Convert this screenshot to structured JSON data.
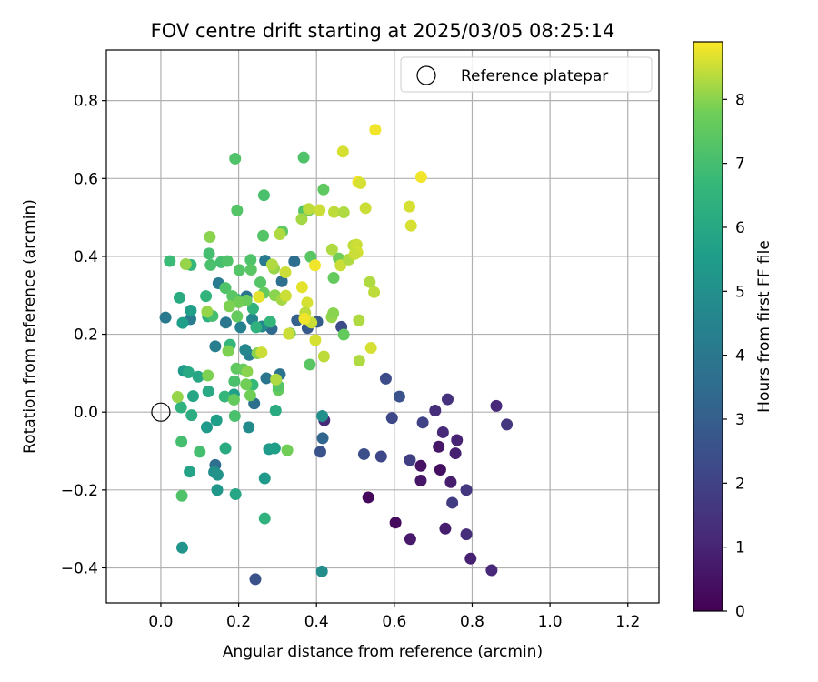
{
  "chart_data": {
    "type": "scatter",
    "title": "FOV centre drift starting at 2025/03/05 08:25:14",
    "xlabel": "Angular distance from reference (arcmin)",
    "ylabel": "Rotation from reference (arcmin)",
    "xlim": [
      -0.14,
      1.28
    ],
    "ylim": [
      -0.49,
      0.93
    ],
    "xticks": [
      "0.0",
      "0.2",
      "0.4",
      "0.6",
      "0.8",
      "1.0",
      "1.2"
    ],
    "yticks": [
      "−0.4",
      "−0.2",
      "0.0",
      "0.2",
      "0.4",
      "0.6",
      "0.8"
    ],
    "grid": true,
    "legend": {
      "position": "top-right",
      "entries": [
        "Reference platepar"
      ]
    },
    "reference_point": {
      "x": 0.0,
      "y": 0.0,
      "label": "Reference platepar"
    },
    "colorbar": {
      "label": "Hours from first FF file",
      "colormap": "viridis",
      "range": [
        0,
        8.9
      ],
      "ticks": [
        "0",
        "1",
        "2",
        "3",
        "4",
        "5",
        "6",
        "7",
        "8"
      ]
    },
    "points": [
      {
        "x": 0.533,
        "y": -0.219,
        "c": 0.2
      },
      {
        "x": 0.603,
        "y": -0.284,
        "c": 0.3
      },
      {
        "x": 0.668,
        "y": -0.138,
        "c": 0.5
      },
      {
        "x": 0.668,
        "y": -0.176,
        "c": 0.6
      },
      {
        "x": 0.641,
        "y": -0.326,
        "c": 0.7
      },
      {
        "x": 0.718,
        "y": -0.148,
        "c": 0.4
      },
      {
        "x": 0.714,
        "y": -0.089,
        "c": 0.6
      },
      {
        "x": 0.745,
        "y": -0.18,
        "c": 0.8
      },
      {
        "x": 0.731,
        "y": -0.299,
        "c": 0.8
      },
      {
        "x": 0.796,
        "y": -0.376,
        "c": 0.9
      },
      {
        "x": 0.85,
        "y": -0.406,
        "c": 1.1
      },
      {
        "x": 0.757,
        "y": -0.106,
        "c": 0.9
      },
      {
        "x": 0.761,
        "y": -0.072,
        "c": 1.0
      },
      {
        "x": 0.725,
        "y": -0.052,
        "c": 1.2
      },
      {
        "x": 0.705,
        "y": 0.004,
        "c": 1.3
      },
      {
        "x": 0.737,
        "y": 0.033,
        "c": 1.4
      },
      {
        "x": 0.785,
        "y": -0.314,
        "c": 1.3
      },
      {
        "x": 0.862,
        "y": 0.016,
        "c": 1.1
      },
      {
        "x": 0.889,
        "y": -0.032,
        "c": 1.6
      },
      {
        "x": 0.785,
        "y": -0.2,
        "c": 1.6
      },
      {
        "x": 0.749,
        "y": -0.233,
        "c": 1.8
      },
      {
        "x": 0.42,
        "y": -0.021,
        "c": 1.2
      },
      {
        "x": 0.64,
        "y": -0.123,
        "c": 1.9
      },
      {
        "x": 0.673,
        "y": -0.027,
        "c": 2.0
      },
      {
        "x": 0.594,
        "y": -0.015,
        "c": 2.2
      },
      {
        "x": 0.566,
        "y": -0.114,
        "c": 2.2
      },
      {
        "x": 0.578,
        "y": 0.086,
        "c": 2.3
      },
      {
        "x": 0.613,
        "y": 0.04,
        "c": 2.6
      },
      {
        "x": 0.522,
        "y": -0.108,
        "c": 2.4
      },
      {
        "x": 0.464,
        "y": 0.219,
        "c": 2.3
      },
      {
        "x": 0.243,
        "y": -0.429,
        "c": 2.5
      },
      {
        "x": 0.41,
        "y": -0.102,
        "c": 2.6
      },
      {
        "x": 0.377,
        "y": 0.216,
        "c": 2.8
      },
      {
        "x": 0.402,
        "y": 0.232,
        "c": 2.9
      },
      {
        "x": 0.35,
        "y": 0.236,
        "c": 3.1
      },
      {
        "x": 0.416,
        "y": -0.067,
        "c": 3.3
      },
      {
        "x": 0.285,
        "y": 0.214,
        "c": 3.4
      },
      {
        "x": 0.343,
        "y": 0.387,
        "c": 3.6
      },
      {
        "x": 0.311,
        "y": 0.336,
        "c": 3.6
      },
      {
        "x": 0.24,
        "y": 0.022,
        "c": 3.7
      },
      {
        "x": 0.306,
        "y": 0.097,
        "c": 3.8
      },
      {
        "x": 0.271,
        "y": 0.087,
        "c": 3.9
      },
      {
        "x": 0.14,
        "y": -0.136,
        "c": 3.6
      },
      {
        "x": 0.22,
        "y": 0.297,
        "c": 3.8
      },
      {
        "x": 0.268,
        "y": 0.389,
        "c": 4.1
      },
      {
        "x": 0.167,
        "y": 0.23,
        "c": 4.0
      },
      {
        "x": 0.012,
        "y": 0.243,
        "c": 4.1
      },
      {
        "x": 0.076,
        "y": 0.239,
        "c": 4.2
      },
      {
        "x": 0.148,
        "y": 0.331,
        "c": 4.2
      },
      {
        "x": 0.14,
        "y": 0.169,
        "c": 4.3
      },
      {
        "x": 0.205,
        "y": 0.218,
        "c": 4.4
      },
      {
        "x": 0.227,
        "y": 0.147,
        "c": 4.3
      },
      {
        "x": 0.235,
        "y": 0.239,
        "c": 4.6
      },
      {
        "x": 0.26,
        "y": 0.22,
        "c": 4.7
      },
      {
        "x": 0.217,
        "y": 0.16,
        "c": 4.6
      },
      {
        "x": 0.226,
        "y": -0.039,
        "c": 4.8
      },
      {
        "x": 0.414,
        "y": -0.409,
        "c": 4.9
      },
      {
        "x": 0.415,
        "y": -0.01,
        "c": 5.0
      },
      {
        "x": 0.137,
        "y": -0.154,
        "c": 5.0
      },
      {
        "x": 0.146,
        "y": -0.161,
        "c": 5.1
      },
      {
        "x": 0.145,
        "y": -0.2,
        "c": 5.3
      },
      {
        "x": 0.055,
        "y": -0.348,
        "c": 5.2
      },
      {
        "x": 0.278,
        "y": -0.095,
        "c": 5.4
      },
      {
        "x": 0.267,
        "y": -0.17,
        "c": 5.4
      },
      {
        "x": 0.293,
        "y": -0.093,
        "c": 5.6
      },
      {
        "x": 0.118,
        "y": -0.039,
        "c": 5.4
      },
      {
        "x": 0.143,
        "y": -0.021,
        "c": 5.6
      },
      {
        "x": 0.188,
        "y": 0.045,
        "c": 5.6
      },
      {
        "x": 0.056,
        "y": 0.229,
        "c": 5.6
      },
      {
        "x": 0.077,
        "y": 0.261,
        "c": 5.6
      },
      {
        "x": 0.059,
        "y": 0.106,
        "c": 5.5
      },
      {
        "x": 0.096,
        "y": 0.091,
        "c": 5.9
      },
      {
        "x": 0.083,
        "y": 0.041,
        "c": 5.9
      },
      {
        "x": 0.122,
        "y": 0.053,
        "c": 6.0
      },
      {
        "x": 0.071,
        "y": 0.102,
        "c": 6.0
      },
      {
        "x": 0.074,
        "y": -0.153,
        "c": 5.8
      },
      {
        "x": 0.192,
        "y": -0.211,
        "c": 5.9
      },
      {
        "x": 0.295,
        "y": 0.004,
        "c": 6.1
      },
      {
        "x": 0.166,
        "y": -0.093,
        "c": 6.1
      },
      {
        "x": 0.079,
        "y": -0.008,
        "c": 6.2
      },
      {
        "x": 0.052,
        "y": 0.012,
        "c": 6.4
      },
      {
        "x": 0.267,
        "y": -0.273,
        "c": 6.4
      },
      {
        "x": 0.048,
        "y": 0.294,
        "c": 6.1
      },
      {
        "x": 0.116,
        "y": 0.298,
        "c": 6.5
      },
      {
        "x": 0.121,
        "y": 0.246,
        "c": 6.3
      },
      {
        "x": 0.196,
        "y": 0.289,
        "c": 6.4
      },
      {
        "x": 0.237,
        "y": 0.266,
        "c": 6.5
      },
      {
        "x": 0.245,
        "y": 0.218,
        "c": 6.4
      },
      {
        "x": 0.281,
        "y": 0.232,
        "c": 6.6
      },
      {
        "x": 0.178,
        "y": 0.173,
        "c": 6.6
      },
      {
        "x": 0.164,
        "y": 0.04,
        "c": 6.6
      },
      {
        "x": 0.236,
        "y": 0.07,
        "c": 6.7
      },
      {
        "x": 0.023,
        "y": 0.388,
        "c": 6.8
      },
      {
        "x": 0.077,
        "y": 0.378,
        "c": 6.6
      },
      {
        "x": 0.053,
        "y": -0.076,
        "c": 7.0
      },
      {
        "x": 0.054,
        "y": -0.215,
        "c": 7.2
      },
      {
        "x": 0.1,
        "y": -0.102,
        "c": 7.0
      },
      {
        "x": 0.19,
        "y": -0.01,
        "c": 7.1
      },
      {
        "x": 0.189,
        "y": 0.079,
        "c": 7.1
      },
      {
        "x": 0.133,
        "y": 0.247,
        "c": 7.0
      },
      {
        "x": 0.155,
        "y": 0.385,
        "c": 7.0
      },
      {
        "x": 0.128,
        "y": 0.378,
        "c": 7.1
      },
      {
        "x": 0.124,
        "y": 0.407,
        "c": 7.0
      },
      {
        "x": 0.171,
        "y": 0.388,
        "c": 7.2
      },
      {
        "x": 0.202,
        "y": 0.365,
        "c": 7.3
      },
      {
        "x": 0.231,
        "y": 0.391,
        "c": 7.2
      },
      {
        "x": 0.232,
        "y": 0.366,
        "c": 7.4
      },
      {
        "x": 0.166,
        "y": 0.319,
        "c": 7.2
      },
      {
        "x": 0.184,
        "y": 0.298,
        "c": 7.4
      },
      {
        "x": 0.256,
        "y": 0.333,
        "c": 7.3
      },
      {
        "x": 0.265,
        "y": 0.306,
        "c": 7.6
      },
      {
        "x": 0.191,
        "y": 0.651,
        "c": 7.2
      },
      {
        "x": 0.196,
        "y": 0.518,
        "c": 7.3
      },
      {
        "x": 0.265,
        "y": 0.557,
        "c": 7.1
      },
      {
        "x": 0.263,
        "y": 0.453,
        "c": 7.3
      },
      {
        "x": 0.312,
        "y": 0.464,
        "c": 7.5
      },
      {
        "x": 0.367,
        "y": 0.654,
        "c": 7.2
      },
      {
        "x": 0.368,
        "y": 0.517,
        "c": 7.3
      },
      {
        "x": 0.418,
        "y": 0.572,
        "c": 7.5
      },
      {
        "x": 0.38,
        "y": 0.519,
        "c": 7.6
      },
      {
        "x": 0.385,
        "y": 0.399,
        "c": 7.4
      },
      {
        "x": 0.444,
        "y": 0.345,
        "c": 7.6
      },
      {
        "x": 0.457,
        "y": 0.395,
        "c": 7.8
      },
      {
        "x": 0.47,
        "y": 0.199,
        "c": 7.6
      },
      {
        "x": 0.383,
        "y": 0.122,
        "c": 7.4
      },
      {
        "x": 0.332,
        "y": 0.202,
        "c": 7.8
      },
      {
        "x": 0.302,
        "y": 0.057,
        "c": 7.6
      },
      {
        "x": 0.302,
        "y": 0.067,
        "c": 7.3
      },
      {
        "x": 0.325,
        "y": -0.098,
        "c": 7.8
      },
      {
        "x": 0.194,
        "y": 0.112,
        "c": 7.5
      },
      {
        "x": 0.212,
        "y": 0.11,
        "c": 7.6
      },
      {
        "x": 0.219,
        "y": 0.071,
        "c": 7.8
      },
      {
        "x": 0.23,
        "y": 0.043,
        "c": 7.8
      },
      {
        "x": 0.188,
        "y": 0.032,
        "c": 7.6
      },
      {
        "x": 0.196,
        "y": 0.246,
        "c": 7.6
      },
      {
        "x": 0.22,
        "y": 0.287,
        "c": 7.7
      },
      {
        "x": 0.2,
        "y": 0.282,
        "c": 7.8
      },
      {
        "x": 0.176,
        "y": 0.272,
        "c": 7.9
      },
      {
        "x": 0.173,
        "y": 0.157,
        "c": 7.9
      },
      {
        "x": 0.121,
        "y": 0.094,
        "c": 7.9
      },
      {
        "x": 0.222,
        "y": 0.104,
        "c": 8.0
      },
      {
        "x": 0.248,
        "y": 0.151,
        "c": 8.0
      },
      {
        "x": 0.119,
        "y": 0.258,
        "c": 8.1
      },
      {
        "x": 0.126,
        "y": 0.45,
        "c": 8.0
      },
      {
        "x": 0.293,
        "y": 0.3,
        "c": 8.0
      },
      {
        "x": 0.291,
        "y": 0.369,
        "c": 8.1
      },
      {
        "x": 0.286,
        "y": 0.379,
        "c": 8.3
      },
      {
        "x": 0.311,
        "y": 0.289,
        "c": 8.2
      },
      {
        "x": 0.306,
        "y": 0.457,
        "c": 8.3
      },
      {
        "x": 0.362,
        "y": 0.496,
        "c": 8.2
      },
      {
        "x": 0.38,
        "y": 0.522,
        "c": 8.4
      },
      {
        "x": 0.408,
        "y": 0.519,
        "c": 8.5
      },
      {
        "x": 0.44,
        "y": 0.418,
        "c": 8.3
      },
      {
        "x": 0.445,
        "y": 0.514,
        "c": 8.4
      },
      {
        "x": 0.47,
        "y": 0.513,
        "c": 8.3
      },
      {
        "x": 0.462,
        "y": 0.377,
        "c": 8.5
      },
      {
        "x": 0.483,
        "y": 0.392,
        "c": 8.3
      },
      {
        "x": 0.495,
        "y": 0.428,
        "c": 8.4
      },
      {
        "x": 0.503,
        "y": 0.43,
        "c": 8.5
      },
      {
        "x": 0.505,
        "y": 0.41,
        "c": 8.6
      },
      {
        "x": 0.498,
        "y": 0.406,
        "c": 8.5
      },
      {
        "x": 0.537,
        "y": 0.334,
        "c": 8.3
      },
      {
        "x": 0.548,
        "y": 0.308,
        "c": 8.4
      },
      {
        "x": 0.509,
        "y": 0.236,
        "c": 8.3
      },
      {
        "x": 0.51,
        "y": 0.132,
        "c": 8.3
      },
      {
        "x": 0.54,
        "y": 0.165,
        "c": 8.6
      },
      {
        "x": 0.419,
        "y": 0.143,
        "c": 8.4
      },
      {
        "x": 0.397,
        "y": 0.185,
        "c": 8.6
      },
      {
        "x": 0.387,
        "y": 0.23,
        "c": 8.5
      },
      {
        "x": 0.376,
        "y": 0.281,
        "c": 8.6
      },
      {
        "x": 0.363,
        "y": 0.321,
        "c": 8.7
      },
      {
        "x": 0.371,
        "y": 0.255,
        "c": 8.4
      },
      {
        "x": 0.32,
        "y": 0.359,
        "c": 8.5
      },
      {
        "x": 0.321,
        "y": 0.299,
        "c": 8.5
      },
      {
        "x": 0.369,
        "y": 0.24,
        "c": 8.8
      },
      {
        "x": 0.252,
        "y": 0.296,
        "c": 8.7
      },
      {
        "x": 0.396,
        "y": 0.377,
        "c": 8.8
      },
      {
        "x": 0.468,
        "y": 0.669,
        "c": 8.6
      },
      {
        "x": 0.551,
        "y": 0.725,
        "c": 8.8
      },
      {
        "x": 0.507,
        "y": 0.591,
        "c": 8.8
      },
      {
        "x": 0.513,
        "y": 0.588,
        "c": 8.6
      },
      {
        "x": 0.526,
        "y": 0.524,
        "c": 8.5
      },
      {
        "x": 0.639,
        "y": 0.528,
        "c": 8.6
      },
      {
        "x": 0.643,
        "y": 0.479,
        "c": 8.6
      },
      {
        "x": 0.669,
        "y": 0.604,
        "c": 8.8
      },
      {
        "x": 0.329,
        "y": 0.201,
        "c": 8.5
      },
      {
        "x": 0.259,
        "y": 0.153,
        "c": 8.5
      },
      {
        "x": 0.043,
        "y": 0.039,
        "c": 8.1
      },
      {
        "x": 0.064,
        "y": 0.38,
        "c": 8.1
      },
      {
        "x": 0.439,
        "y": 0.244,
        "c": 8.1
      },
      {
        "x": 0.443,
        "y": 0.254,
        "c": 8.0
      },
      {
        "x": 0.296,
        "y": 0.084,
        "c": 8.3
      }
    ]
  }
}
